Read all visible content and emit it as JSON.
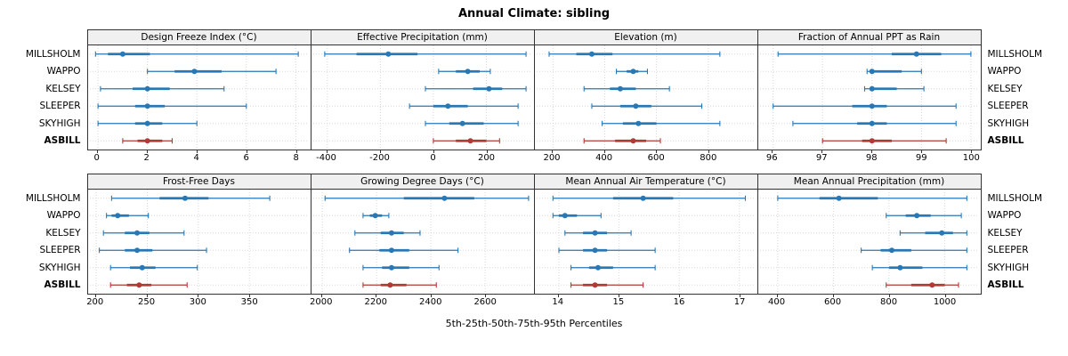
{
  "title": "Annual Climate: sibling",
  "caption": "5th-25th-50th-75th-95th Percentiles",
  "stations": [
    "MILLSHOLM",
    "WAPPO",
    "KELSEY",
    "SLEEPER",
    "SKYHIGH",
    "ASBILL"
  ],
  "highlight_station": "ASBILL",
  "colors": {
    "series": "#2878b5",
    "highlight": "#b03a34",
    "grid": "#d8d8d8",
    "panel_border": "#333333",
    "header_bg": "#f0f0f0"
  },
  "chart_data": {
    "type": "interval",
    "orientation": "horizontal",
    "percentiles": [
      5,
      25,
      50,
      75,
      95
    ],
    "grid": "dotted",
    "legend_position": "none",
    "categories": [
      "MILLSHOLM",
      "WAPPO",
      "KELSEY",
      "SLEEPER",
      "SKYHIGH",
      "ASBILL"
    ],
    "panels": [
      {
        "title": "Design Freeze Index (°C)",
        "row": 0,
        "xlim": [
          -0.4,
          8.6
        ],
        "ticks": [
          0,
          2,
          4,
          6,
          8
        ],
        "values": [
          [
            -0.1,
            0.4,
            1.0,
            2.1,
            8.1
          ],
          [
            2.0,
            3.1,
            3.9,
            5.0,
            7.2
          ],
          [
            0.1,
            1.4,
            2.0,
            2.9,
            5.1
          ],
          [
            0.0,
            1.5,
            2.0,
            2.7,
            6.0
          ],
          [
            0.0,
            1.5,
            2.0,
            2.6,
            4.0
          ],
          [
            1.0,
            1.6,
            2.0,
            2.6,
            3.0
          ]
        ]
      },
      {
        "title": "Effective Precipitation (mm)",
        "row": 0,
        "xlim": [
          -460,
          380
        ],
        "ticks": [
          -400,
          -200,
          0,
          200
        ],
        "values": [
          [
            -410,
            -290,
            -170,
            -60,
            350
          ],
          [
            20,
            85,
            130,
            175,
            215
          ],
          [
            -30,
            150,
            210,
            260,
            350
          ],
          [
            -90,
            0,
            55,
            130,
            320
          ],
          [
            -30,
            60,
            110,
            190,
            320
          ],
          [
            0,
            85,
            140,
            200,
            250
          ]
        ]
      },
      {
        "title": "Elevation (m)",
        "row": 0,
        "xlim": [
          130,
          990
        ],
        "ticks": [
          200,
          400,
          600,
          800
        ],
        "values": [
          [
            185,
            290,
            350,
            430,
            845
          ],
          [
            445,
            485,
            510,
            530,
            565
          ],
          [
            320,
            420,
            460,
            520,
            650
          ],
          [
            350,
            460,
            520,
            580,
            775
          ],
          [
            390,
            470,
            530,
            600,
            845
          ],
          [
            320,
            440,
            510,
            560,
            615
          ]
        ]
      },
      {
        "title": "Fraction of Annual PPT as Rain",
        "row": 0,
        "xlim": [
          95.7,
          100.2
        ],
        "ticks": [
          96,
          97,
          98,
          99,
          100
        ],
        "values": [
          [
            96.1,
            98.4,
            98.9,
            99.4,
            100.0
          ],
          [
            97.9,
            97.95,
            98.0,
            98.6,
            99.0
          ],
          [
            97.85,
            97.95,
            98.0,
            98.5,
            99.05
          ],
          [
            96.0,
            97.6,
            98.0,
            98.3,
            99.7
          ],
          [
            96.4,
            97.7,
            98.0,
            98.3,
            99.7
          ],
          [
            97.0,
            97.8,
            98.0,
            98.4,
            99.5
          ]
        ]
      },
      {
        "title": "Frost-Free Days",
        "row": 1,
        "xlim": [
          192,
          410
        ],
        "ticks": [
          200,
          250,
          300,
          350
        ],
        "values": [
          [
            215,
            262,
            287,
            310,
            370
          ],
          [
            210,
            215,
            221,
            232,
            251
          ],
          [
            207,
            228,
            240,
            252,
            286
          ],
          [
            203,
            228,
            240,
            255,
            308
          ],
          [
            214,
            233,
            245,
            258,
            299
          ],
          [
            214,
            230,
            242,
            254,
            289
          ]
        ]
      },
      {
        "title": "Growing Degree Days (°C)",
        "row": 1,
        "xlim": [
          1960,
          2780
        ],
        "ticks": [
          2000,
          2200,
          2400,
          2600
        ],
        "values": [
          [
            2010,
            2300,
            2450,
            2560,
            2760
          ],
          [
            2150,
            2175,
            2195,
            2220,
            2245
          ],
          [
            2120,
            2215,
            2255,
            2300,
            2360
          ],
          [
            2100,
            2210,
            2255,
            2320,
            2500
          ],
          [
            2150,
            2220,
            2255,
            2320,
            2430
          ],
          [
            2150,
            2215,
            2250,
            2310,
            2420
          ]
        ]
      },
      {
        "title": "Mean Annual Air Temperature (°C)",
        "row": 1,
        "xlim": [
          13.6,
          17.3
        ],
        "ticks": [
          14,
          15,
          16,
          17
        ],
        "values": [
          [
            13.9,
            14.9,
            15.4,
            15.9,
            17.1
          ],
          [
            13.9,
            14.0,
            14.1,
            14.3,
            14.7
          ],
          [
            14.1,
            14.4,
            14.6,
            14.8,
            15.2
          ],
          [
            14.0,
            14.4,
            14.6,
            14.8,
            15.6
          ],
          [
            14.2,
            14.5,
            14.65,
            14.9,
            15.6
          ],
          [
            14.2,
            14.4,
            14.6,
            14.8,
            15.4
          ]
        ]
      },
      {
        "title": "Mean Annual Precipitation (mm)",
        "row": 1,
        "xlim": [
          330,
          1130
        ],
        "ticks": [
          400,
          600,
          800,
          1000
        ],
        "values": [
          [
            400,
            550,
            620,
            760,
            1080
          ],
          [
            790,
            860,
            900,
            950,
            1060
          ],
          [
            840,
            930,
            990,
            1030,
            1080
          ],
          [
            700,
            770,
            810,
            880,
            1080
          ],
          [
            740,
            800,
            840,
            920,
            1080
          ],
          [
            790,
            880,
            955,
            1000,
            1050
          ]
        ]
      }
    ]
  }
}
